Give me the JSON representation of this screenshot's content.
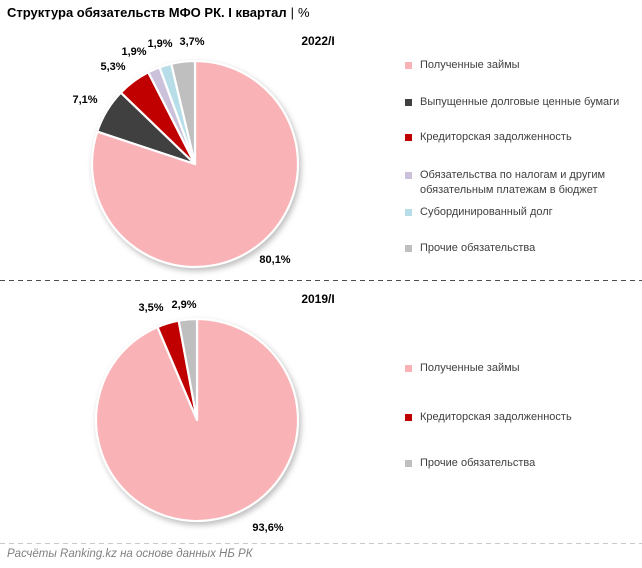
{
  "header": {
    "title_main": "Структура обязательств МФО РК. I квартал",
    "separator": "|",
    "unit": "%"
  },
  "chart_data": [
    {
      "type": "pie",
      "title": "2022/I",
      "start_angle_deg": -90,
      "direction": "clockwise",
      "legend_position": "right",
      "slices": [
        {
          "label": "Полученные займы",
          "value": 80.1,
          "display": "80,1%",
          "color": "#F9B3B6"
        },
        {
          "label": "Выпущенные долговые ценные бумаги",
          "value": 7.1,
          "display": "7,1%",
          "color": "#404040"
        },
        {
          "label": "Кредиторская задолженность",
          "value": 5.3,
          "display": "5,3%",
          "color": "#C00000"
        },
        {
          "label": "Обязательства по налогам и другим обязательным платежам в бюджет",
          "value": 1.9,
          "display": "1,9%",
          "color": "#CCC1DA"
        },
        {
          "label": "Субординированный долг",
          "value": 1.9,
          "display": "1,9%",
          "color": "#B7DEE8"
        },
        {
          "label": "Прочие обязательства",
          "value": 3.7,
          "display": "3,7%",
          "color": "#BFBFBF"
        }
      ]
    },
    {
      "type": "pie",
      "title": "2019/I",
      "start_angle_deg": -90,
      "direction": "clockwise",
      "legend_position": "right",
      "slices": [
        {
          "label": "Полученные займы",
          "value": 93.6,
          "display": "93,6%",
          "color": "#F9B3B6"
        },
        {
          "label": "Кредиторская задолженность",
          "value": 3.5,
          "display": "3,5%",
          "color": "#C00000"
        },
        {
          "label": "Прочие обязательства",
          "value": 2.9,
          "display": "2,9%",
          "color": "#BFBFBF"
        }
      ]
    }
  ],
  "footer": {
    "source": "Расчёты Ranking.kz на основе данных НБ РК"
  }
}
